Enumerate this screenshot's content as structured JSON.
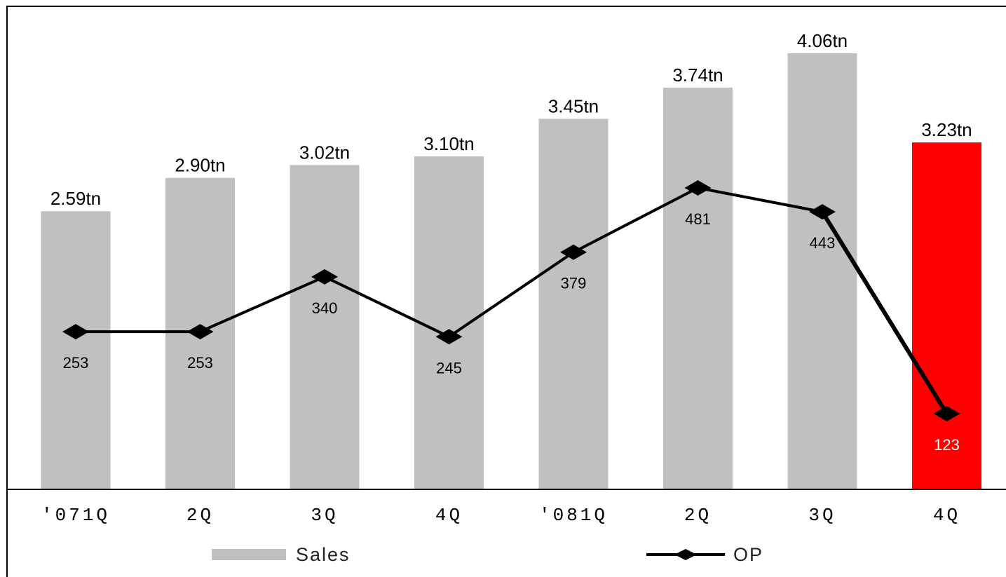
{
  "chart_data": {
    "type": "bar",
    "categories": [
      "'071Q",
      "2Q",
      "3Q",
      "4Q",
      "'081Q",
      "2Q",
      "3Q",
      "4Q"
    ],
    "series": [
      {
        "name": "Sales",
        "kind": "bar",
        "values": [
          2.59,
          2.9,
          3.02,
          3.1,
          3.45,
          3.74,
          4.06,
          3.23
        ],
        "labels": [
          "2.59tn",
          "2.90tn",
          "3.02tn",
          "3.10tn",
          "3.45tn",
          "3.74tn",
          "4.06tn",
          "3.23tn"
        ],
        "color": "#c0c0c0",
        "highlight_color": "#ff0000",
        "highlight_index": 7
      },
      {
        "name": "OP",
        "kind": "line",
        "values": [
          253,
          253,
          340,
          245,
          379,
          481,
          443,
          123
        ],
        "labels": [
          "253",
          "253",
          "340",
          "245",
          "379",
          "481",
          "443",
          "123"
        ],
        "color": "#000000"
      }
    ],
    "sales_axis": [
      0,
      4.2
    ],
    "op_axis": [
      -50,
      600
    ],
    "grid": false,
    "legend": "bottom"
  }
}
